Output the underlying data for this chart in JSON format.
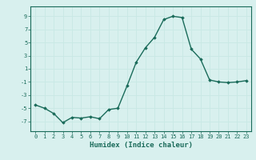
{
  "x": [
    0,
    1,
    2,
    3,
    4,
    5,
    6,
    7,
    8,
    9,
    10,
    11,
    12,
    13,
    14,
    15,
    16,
    17,
    18,
    19,
    20,
    21,
    22,
    23
  ],
  "y": [
    -4.5,
    -5.0,
    -5.8,
    -7.2,
    -6.4,
    -6.5,
    -6.3,
    -6.6,
    -5.2,
    -5.0,
    -1.6,
    2.0,
    4.2,
    5.8,
    8.5,
    9.0,
    8.8,
    4.0,
    2.5,
    -0.7,
    -1.0,
    -1.1,
    -1.0,
    -0.8
  ],
  "line_color": "#1a6b5a",
  "marker": "D",
  "markersize": 1.8,
  "linewidth": 1.0,
  "xlabel": "Humidex (Indice chaleur)",
  "xlabel_fontsize": 6.5,
  "xlabel_fontweight": "bold",
  "xlabel_color": "#1a6b5a",
  "yticks": [
    -7,
    -5,
    -3,
    -1,
    1,
    3,
    5,
    7,
    9
  ],
  "ylim": [
    -8.5,
    10.5
  ],
  "xlim": [
    -0.5,
    23.5
  ],
  "xticks": [
    0,
    1,
    2,
    3,
    4,
    5,
    6,
    7,
    8,
    9,
    10,
    11,
    12,
    13,
    14,
    15,
    16,
    17,
    18,
    19,
    20,
    21,
    22,
    23
  ],
  "tick_color": "#1a6b5a",
  "tick_fontsize": 5.0,
  "grid_color": "#c8e8e4",
  "bg_color": "#d8f0ee",
  "spine_color": "#1a6b5a"
}
